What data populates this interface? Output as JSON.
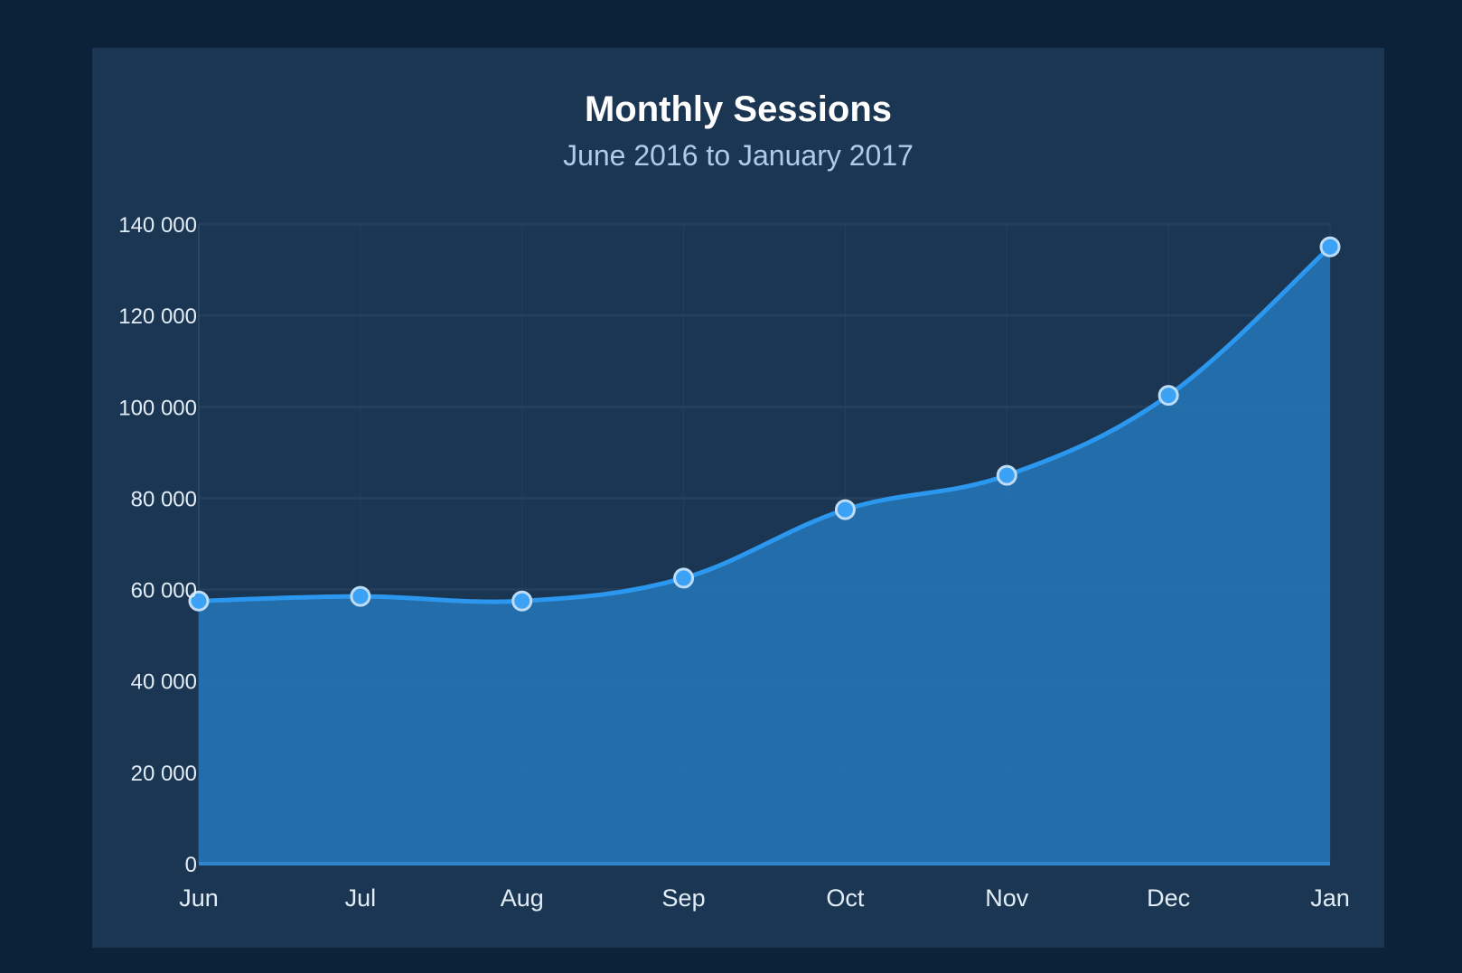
{
  "chart_data": {
    "type": "area",
    "title": "Monthly Sessions",
    "subtitle": "June 2016 to January 2017",
    "xlabel": "",
    "ylabel": "",
    "categories": [
      "Jun",
      "Jul",
      "Aug",
      "Sep",
      "Oct",
      "Nov",
      "Dec",
      "Jan"
    ],
    "series": [
      {
        "values": [
          57500,
          58500,
          57500,
          62500,
          77500,
          85000,
          102500,
          135000
        ]
      }
    ],
    "ylim": [
      0,
      140000
    ],
    "yticks": [
      0,
      20000,
      40000,
      60000,
      80000,
      100000,
      120000,
      140000
    ],
    "ytick_labels": [
      "0",
      "20 000",
      "40 000",
      "60 000",
      "80 000",
      "100 000",
      "120 000",
      "140 000"
    ],
    "grid": true,
    "smooth": true,
    "legend": "none",
    "colors": {
      "background": "#0b2239",
      "panel": "#1b3652",
      "line": "#2b97ee",
      "area": "#236fad",
      "marker_fill": "#3ba2f5",
      "marker_stroke": "#bfdcf7",
      "grid": "#243f5c"
    }
  }
}
